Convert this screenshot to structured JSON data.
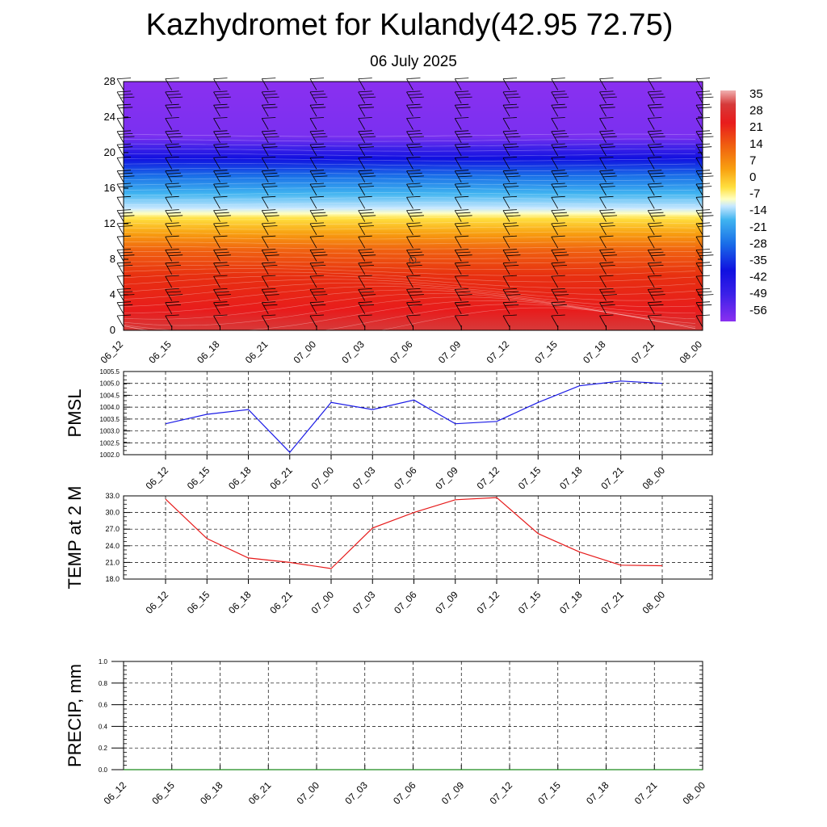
{
  "header": {
    "title": "Kazhydromet for Kulandy(42.95 72.75)",
    "date": "06 July 2025"
  },
  "chart_data": [
    {
      "type": "heatmap",
      "name": "vertical-temperature-cross-section",
      "x_ticks": [
        "06_12",
        "06_15",
        "06_18",
        "06_21",
        "07_00",
        "07_03",
        "07_06",
        "07_09",
        "07_12",
        "07_15",
        "07_18",
        "07_21",
        "08_00"
      ],
      "y_ticks": [
        "0",
        "4",
        "8",
        "12",
        "16",
        "20",
        "24",
        "28"
      ],
      "ylim": [
        0,
        28
      ],
      "colorbar_labels": [
        "35",
        "28",
        "21",
        "14",
        "7",
        "0",
        "-7",
        "-14",
        "-21",
        "-28",
        "-35",
        "-42",
        "-49",
        "-56"
      ],
      "temperature_bands": [
        {
          "height": 0,
          "value": 35
        },
        {
          "height": 4,
          "value": 28
        },
        {
          "height": 8,
          "value": 21
        },
        {
          "height": 11,
          "value": 10
        },
        {
          "height": 13,
          "value": -10
        },
        {
          "height": 16,
          "value": -35
        },
        {
          "height": 20,
          "value": -58
        },
        {
          "height": 24,
          "value": -60
        },
        {
          "height": 28,
          "value": -60
        }
      ],
      "overlay": "wind barbs"
    },
    {
      "type": "line",
      "name": "pmsl",
      "ylabel": "PMSL",
      "x": [
        "06_12",
        "06_15",
        "06_18",
        "06_21",
        "07_00",
        "07_03",
        "07_06",
        "07_09",
        "07_12",
        "07_15",
        "07_18",
        "07_21",
        "08_00"
      ],
      "y": [
        1003.3,
        1003.7,
        1003.9,
        1002.1,
        1004.2,
        1003.9,
        1004.3,
        1003.3,
        1003.4,
        1004.2,
        1004.9,
        1005.1,
        1005.0
      ],
      "ylim": [
        1002.0,
        1005.5
      ],
      "y_ticks": [
        "1002.0",
        "1002.5",
        "1003.0",
        "1003.5",
        "1004.0",
        "1004.5",
        "1005.0",
        "1005.5"
      ],
      "color": "#1a1ae6",
      "grid": true
    },
    {
      "type": "line",
      "name": "temp-2m",
      "ylabel": "TEMP at 2 M",
      "x": [
        "06_12",
        "06_15",
        "06_18",
        "06_21",
        "07_00",
        "07_03",
        "07_06",
        "07_09",
        "07_12",
        "07_15",
        "07_18",
        "07_21",
        "08_00"
      ],
      "y": [
        32.4,
        25.3,
        21.8,
        21.0,
        19.9,
        27.2,
        30.0,
        32.3,
        32.7,
        26.2,
        22.9,
        20.5,
        20.4
      ],
      "ylim": [
        18.0,
        33.0
      ],
      "y_ticks": [
        "18.0",
        "21.0",
        "24.0",
        "27.0",
        "30.0",
        "33.0"
      ],
      "color": "#e61a1a",
      "grid": true
    },
    {
      "type": "line",
      "name": "precip",
      "ylabel": "PRECIP, mm",
      "x": [
        "06_12",
        "06_15",
        "06_18",
        "06_21",
        "07_00",
        "07_03",
        "07_06",
        "07_09",
        "07_12",
        "07_15",
        "07_18",
        "07_21",
        "08_00"
      ],
      "y": [
        0,
        0,
        0,
        0,
        0,
        0,
        0,
        0,
        0,
        0,
        0,
        0,
        0
      ],
      "ylim": [
        0.0,
        1.0
      ],
      "y_ticks": [
        "0.0",
        "0.2",
        "0.4",
        "0.6",
        "0.8",
        "1.0"
      ],
      "color": "#1a8a1a",
      "grid": true
    }
  ]
}
